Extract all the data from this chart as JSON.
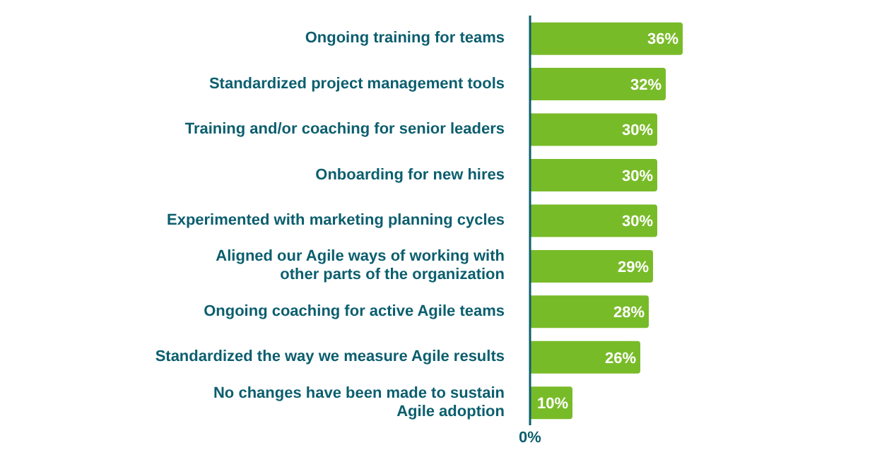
{
  "chart_data": {
    "type": "bar",
    "orientation": "horizontal",
    "categories": [
      "Ongoing training for teams",
      "Standardized project management tools",
      "Training and/or coaching for senior leaders",
      "Onboarding for new hires",
      "Experimented with marketing planning cycles",
      "Aligned our Agile ways of working with other parts of the organization",
      "Ongoing coaching for active Agile teams",
      "Standardized the way we measure Agile results",
      "No changes have been made to sustain Agile adoption"
    ],
    "values": [
      36,
      32,
      30,
      30,
      30,
      29,
      28,
      26,
      10
    ],
    "value_labels": [
      "36%",
      "32%",
      "30%",
      "30%",
      "30%",
      "29%",
      "28%",
      "26%",
      "10%"
    ],
    "color": "#78bb28",
    "annotations": [
      "0%"
    ],
    "grid": false
  }
}
